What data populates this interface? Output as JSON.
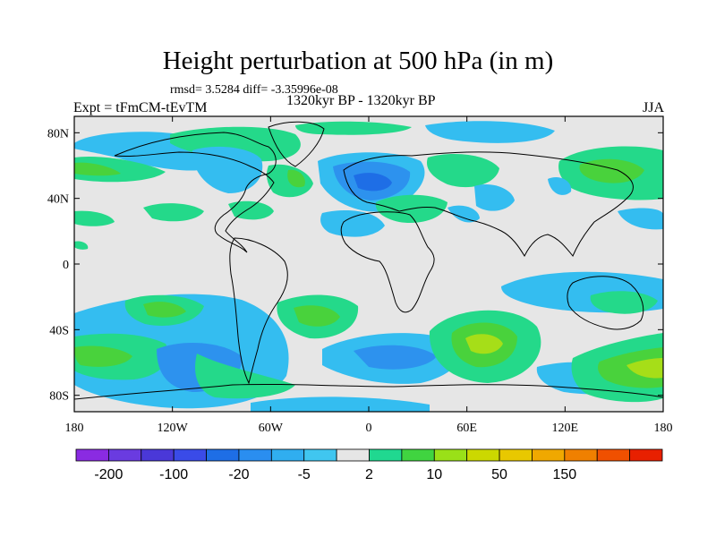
{
  "header": {
    "title": "Height perturbation at 500 hPa (in m)",
    "stats": "rmsd= 3.5284 diff= -3.35996e-08",
    "experiment": "Expt = tFmCM-tEvTM",
    "period": "1320kyr BP - 1320kyr BP",
    "season": "JJA"
  },
  "axes": {
    "lat_ticks": [
      {
        "value": 80,
        "label": "80N"
      },
      {
        "value": 40,
        "label": "40N"
      },
      {
        "value": 0,
        "label": "0"
      },
      {
        "value": -40,
        "label": "40S"
      },
      {
        "value": -80,
        "label": "80S"
      }
    ],
    "lon_ticks": [
      {
        "value": -180,
        "label": "180"
      },
      {
        "value": -120,
        "label": "120W"
      },
      {
        "value": -60,
        "label": "60W"
      },
      {
        "value": 0,
        "label": "0"
      },
      {
        "value": 60,
        "label": "60E"
      },
      {
        "value": 120,
        "label": "120E"
      },
      {
        "value": 180,
        "label": "180"
      }
    ],
    "lat_range": [
      -90,
      90
    ],
    "lon_range": [
      -180,
      180
    ]
  },
  "colorbar": {
    "colors": [
      "#8a2be2",
      "#6a3be0",
      "#4a38d8",
      "#3a4be8",
      "#1e6ee6",
      "#2a8ef0",
      "#30aef0",
      "#40c6f0",
      "#e6e6e6",
      "#20d890",
      "#40d440",
      "#9ae018",
      "#ccd800",
      "#e8c800",
      "#f0a800",
      "#f08000",
      "#f05000",
      "#e82000"
    ],
    "tick_labels": [
      "-200",
      "-100",
      "-20",
      "-5",
      "2",
      "10",
      "50",
      "150"
    ],
    "tick_boundaries": [
      1,
      3,
      5,
      7,
      9,
      11,
      13,
      15
    ]
  },
  "palette": {
    "background": "#e6e6e6",
    "light_blue": "#34bdf0",
    "medium_blue": "#2d92ee",
    "dark_blue": "#1e6ee6",
    "green": "#24d98a",
    "bright_green": "#49d23c",
    "yellow_green": "#a6de18"
  }
}
